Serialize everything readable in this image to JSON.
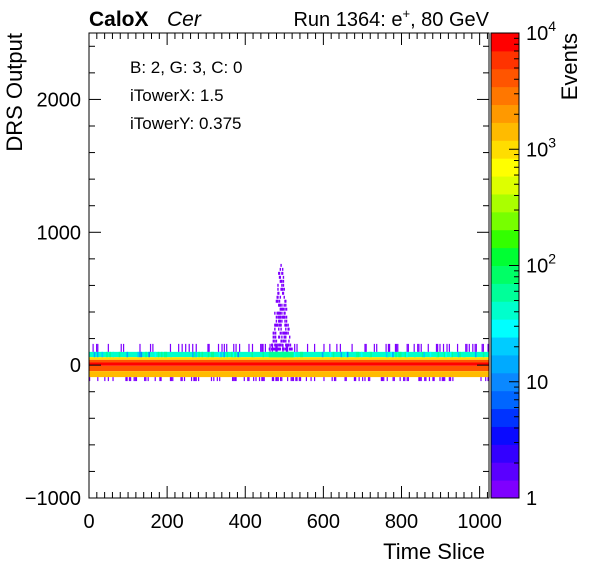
{
  "header": {
    "experiment": "CaloX",
    "channel": "Cer",
    "run_prefix": "Run 1364: e",
    "run_sup": "+",
    "run_suffix": ", 80 GeV"
  },
  "annotation": {
    "lines": [
      "B: 2, G: 3, C: 0",
      "iTowerX: 1.5",
      "iTowerY: 0.375"
    ]
  },
  "chart_data": {
    "type": "heatmap",
    "xlabel": "Time Slice",
    "ylabel": "DRS Output",
    "zlabel": "Events",
    "xlim": [
      0,
      1024
    ],
    "ylim": [
      -1000,
      2500
    ],
    "zlim": [
      1,
      10000
    ],
    "zscale": "log",
    "x_ticks": [
      0,
      200,
      400,
      600,
      800,
      1000
    ],
    "x_tick_labels": [
      "0",
      "200",
      "400",
      "600",
      "800",
      "1000"
    ],
    "y_ticks": [
      -1000,
      0,
      1000,
      2000
    ],
    "y_tick_labels": [
      "−1000",
      "0",
      "1000",
      "2000"
    ],
    "z_tick_labels": [
      {
        "value": 1,
        "base": "1",
        "exp": ""
      },
      {
        "value": 10,
        "base": "10",
        "exp": ""
      },
      {
        "value": 100,
        "base": "10",
        "exp": "2"
      },
      {
        "value": 1000,
        "base": "10",
        "exp": "3"
      },
      {
        "value": 10000,
        "base": "10",
        "exp": "4"
      }
    ],
    "bands": [
      {
        "y0": 100,
        "y1": 60,
        "events": 40
      },
      {
        "y0": 60,
        "y1": 40,
        "events": 1000
      },
      {
        "y0": 40,
        "y1": 20,
        "events": 3500
      },
      {
        "y0": 20,
        "y1": -5,
        "events": 10000
      },
      {
        "y0": -5,
        "y1": -45,
        "events": 4000
      },
      {
        "y0": -45,
        "y1": -90,
        "events": 1200
      }
    ],
    "pulse": {
      "x_range": [
        460,
        520
      ],
      "peak_x": 490,
      "peak_y": 760,
      "sparse_events": 1,
      "band_events": 60
    },
    "sparse_hits": {
      "above_y": 160,
      "below_y": -120,
      "events": 1
    },
    "legend": "none",
    "grid": false
  }
}
